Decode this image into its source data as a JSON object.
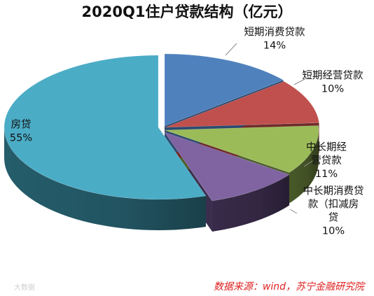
{
  "chart_data": {
    "type": "pie",
    "title": "2020Q1住户贷款结构（亿元）",
    "style": "3d-exploded-ellipse",
    "slices": [
      {
        "lines": [
          "短期消费贷款"
        ],
        "label": "短期消费贷款",
        "value": 14,
        "value_label": "14%",
        "color": "#4f81bd",
        "side_color": "#2c4a70"
      },
      {
        "lines": [
          "短期经营贷款"
        ],
        "label": "短期经营贷款",
        "value": 10,
        "value_label": "10%",
        "color": "#c0504d",
        "side_color": "#6e2b29"
      },
      {
        "lines": [
          "中长期经",
          "营贷款"
        ],
        "label": "中长期经营贷款",
        "value": 11,
        "value_label": "11%",
        "color": "#9bbb59",
        "side_color": "#4c5e2b"
      },
      {
        "lines": [
          "中长期消费贷",
          "款（扣减房",
          "贷"
        ],
        "label": "中长期消费贷款（扣减房贷",
        "value": 10,
        "value_label": "10%",
        "color": "#8064a2",
        "side_color": "#3b2d4d"
      },
      {
        "lines": [
          "房贷"
        ],
        "label": "房贷",
        "value": 55,
        "value_label": "55%",
        "color": "#4bacc6",
        "side_color": "#276271"
      }
    ]
  },
  "source": "数据来源：wind，苏宁金融研究院",
  "watermark": "大数据"
}
